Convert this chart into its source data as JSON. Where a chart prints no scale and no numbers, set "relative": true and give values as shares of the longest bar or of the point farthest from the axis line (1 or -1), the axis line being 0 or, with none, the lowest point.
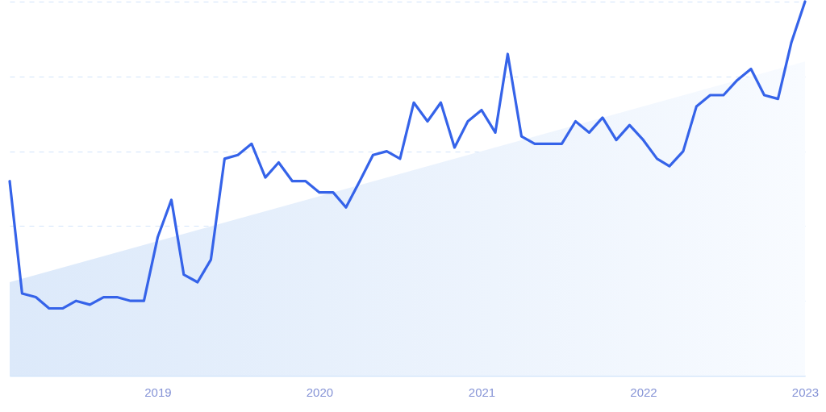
{
  "chart_data": {
    "type": "line",
    "relative": true,
    "x": [
      "2018-02",
      "2018-03",
      "2018-04",
      "2018-05",
      "2018-06",
      "2018-07",
      "2018-08",
      "2018-09",
      "2018-10",
      "2018-11",
      "2018-12",
      "2019-01",
      "2019-02",
      "2019-03",
      "2019-04",
      "2019-05",
      "2019-06",
      "2019-07",
      "2019-08",
      "2019-09",
      "2019-10",
      "2019-11",
      "2019-12",
      "2020-01",
      "2020-02",
      "2020-03",
      "2020-04",
      "2020-05",
      "2020-06",
      "2020-07",
      "2020-08",
      "2020-09",
      "2020-10",
      "2020-11",
      "2020-12",
      "2021-01",
      "2021-02",
      "2021-03",
      "2021-04",
      "2021-05",
      "2021-06",
      "2021-07",
      "2021-08",
      "2021-09",
      "2021-10",
      "2021-11",
      "2021-12",
      "2022-01",
      "2022-02",
      "2022-03",
      "2022-04",
      "2022-05",
      "2022-06",
      "2022-07",
      "2022-08",
      "2022-09",
      "2022-10",
      "2022-11",
      "2022-12",
      "2023-01"
    ],
    "xlim": [
      "2018-02",
      "2023-01"
    ],
    "xticks": [
      "2019",
      "2020",
      "2021",
      "2022",
      "2023"
    ],
    "grid": "y",
    "marker": "none",
    "line_style": "solid",
    "series": [
      {
        "type": "area",
        "x": [
          "2018-02",
          "2023-01"
        ],
        "color": "#dce9fa",
        "values": [
          0.25,
          0.84
        ]
      },
      {
        "color": "#3563e9",
        "values": [
          0.52,
          0.22,
          0.21,
          0.18,
          0.18,
          0.2,
          0.19,
          0.21,
          0.21,
          0.2,
          0.2,
          0.37,
          0.47,
          0.27,
          0.25,
          0.31,
          0.58,
          0.59,
          0.62,
          0.53,
          0.57,
          0.52,
          0.52,
          0.49,
          0.49,
          0.45,
          0.52,
          0.59,
          0.6,
          0.58,
          0.73,
          0.68,
          0.73,
          0.61,
          0.68,
          0.71,
          0.65,
          0.86,
          0.64,
          0.62,
          0.62,
          0.62,
          0.68,
          0.65,
          0.69,
          0.63,
          0.67,
          0.63,
          0.58,
          0.56,
          0.6,
          0.72,
          0.75,
          0.75,
          0.79,
          0.82,
          0.75,
          0.74,
          0.89,
          1
        ]
      }
    ]
  }
}
